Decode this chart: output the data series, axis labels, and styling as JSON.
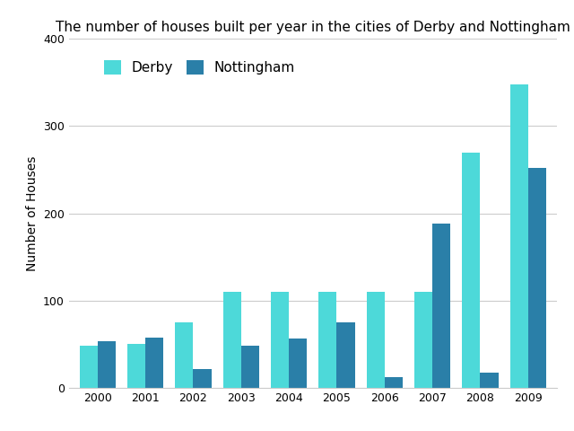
{
  "title": "The number of houses built per year in the cities of Derby and Nottingham",
  "ylabel": "Number of Houses",
  "years": [
    2000,
    2001,
    2002,
    2003,
    2004,
    2005,
    2006,
    2007,
    2008,
    2009
  ],
  "derby": [
    48,
    50,
    75,
    110,
    110,
    110,
    110,
    110,
    270,
    348
  ],
  "nottingham": [
    53,
    58,
    22,
    48,
    57,
    75,
    12,
    188,
    17,
    252
  ],
  "derby_color": "#4DD9D9",
  "nottingham_color": "#2A7FA8",
  "background_color": "#ffffff",
  "ylim": [
    0,
    400
  ],
  "yticks": [
    0,
    100,
    200,
    300,
    400
  ],
  "legend_labels": [
    "Derby",
    "Nottingham"
  ],
  "bar_width": 0.38,
  "title_fontsize": 11,
  "axis_label_fontsize": 10,
  "grid_color": "#cccccc"
}
